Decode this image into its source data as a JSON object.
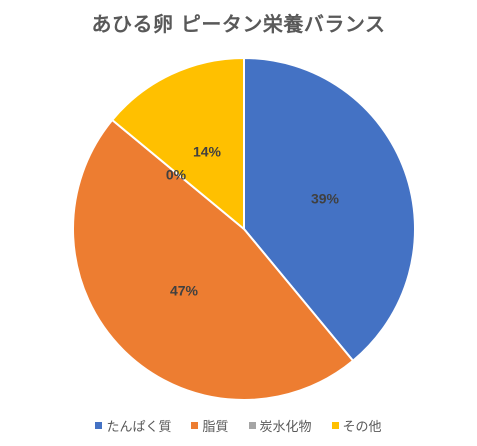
{
  "chart_data": {
    "type": "pie",
    "title": "あひる卵 ピータン栄養バランス",
    "categories": [
      "たんぱく質",
      "脂質",
      "炭水化物",
      "その他"
    ],
    "values": [
      39,
      47,
      0,
      14
    ],
    "labels": [
      "39%",
      "47%",
      "0%",
      "14%"
    ],
    "colors": [
      "#4472C4",
      "#ED7D31",
      "#A5A5A5",
      "#FFC000"
    ],
    "legend_position": "bottom",
    "start_angle": "top, clockwise"
  }
}
